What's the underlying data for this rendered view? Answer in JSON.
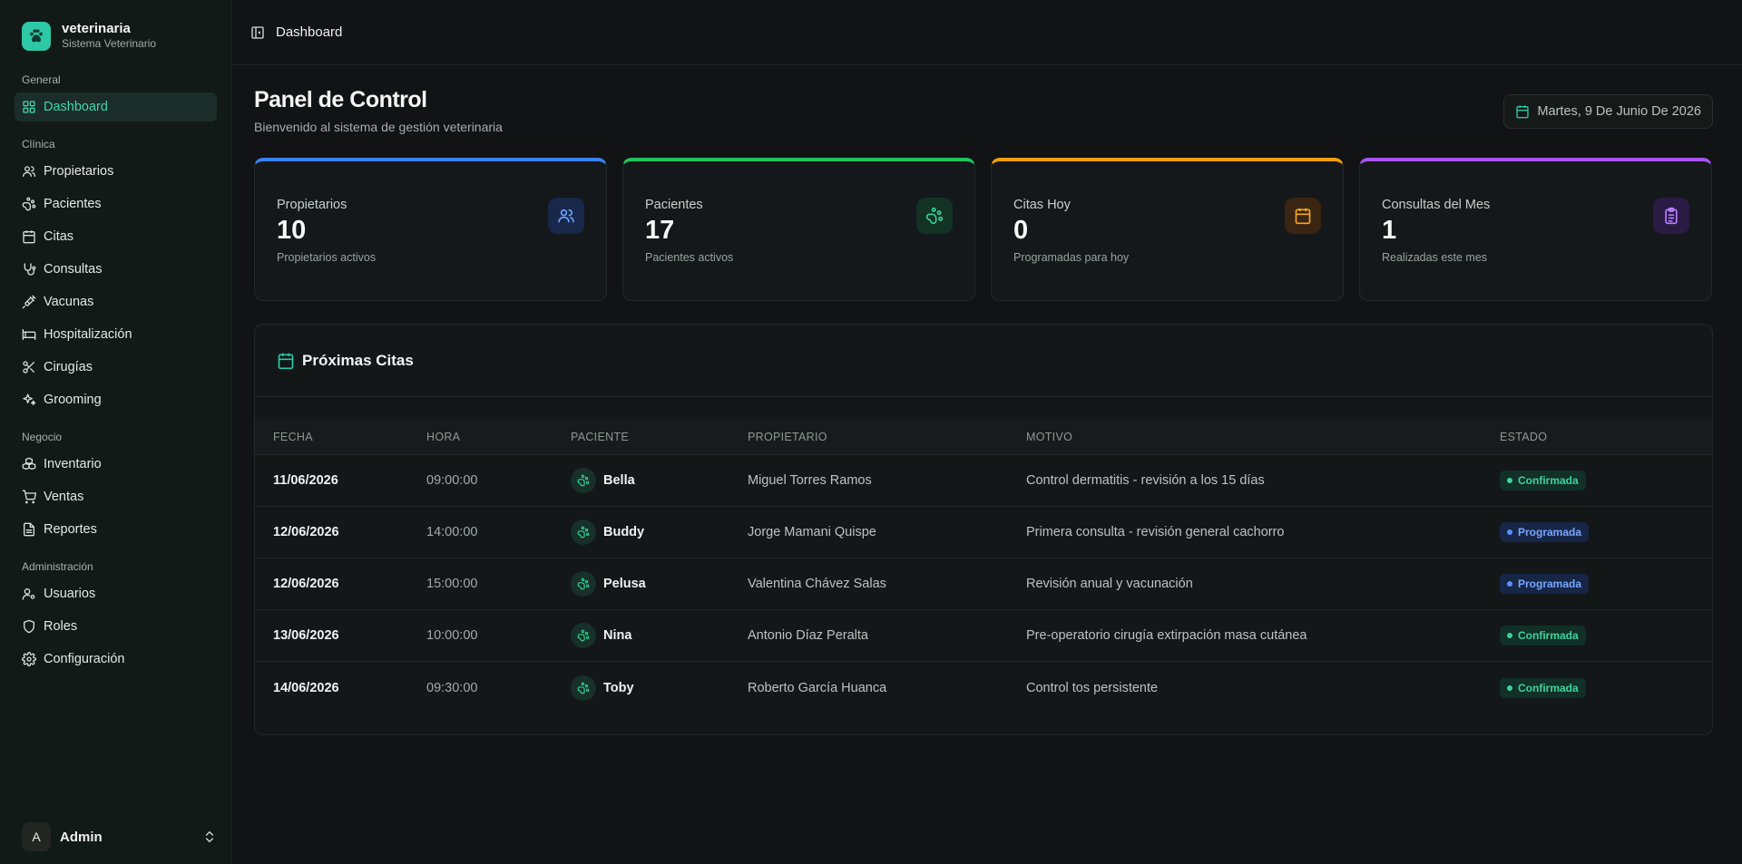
{
  "brand": {
    "title": "veterinaria",
    "subtitle": "Sistema Veterinario"
  },
  "sidebar": {
    "groups": [
      {
        "label": "General",
        "items": [
          {
            "label": "Dashboard",
            "icon": "grid-icon",
            "active": true
          }
        ]
      },
      {
        "label": "Clínica",
        "items": [
          {
            "label": "Propietarios",
            "icon": "users-icon"
          },
          {
            "label": "Pacientes",
            "icon": "paw-icon"
          },
          {
            "label": "Citas",
            "icon": "calendar-icon"
          },
          {
            "label": "Consultas",
            "icon": "stethoscope-icon"
          },
          {
            "label": "Vacunas",
            "icon": "syringe-icon"
          },
          {
            "label": "Hospitalización",
            "icon": "bed-icon"
          },
          {
            "label": "Cirugías",
            "icon": "scissors-icon"
          },
          {
            "label": "Grooming",
            "icon": "sparkles-icon"
          }
        ]
      },
      {
        "label": "Negocio",
        "items": [
          {
            "label": "Inventario",
            "icon": "boxes-icon"
          },
          {
            "label": "Ventas",
            "icon": "cart-icon"
          },
          {
            "label": "Reportes",
            "icon": "file-icon"
          }
        ]
      },
      {
        "label": "Administración",
        "items": [
          {
            "label": "Usuarios",
            "icon": "user-cog-icon"
          },
          {
            "label": "Roles",
            "icon": "shield-icon"
          },
          {
            "label": "Configuración",
            "icon": "gear-icon"
          }
        ]
      }
    ],
    "user": {
      "initial": "A",
      "name": "Admin"
    }
  },
  "topbar": {
    "breadcrumb": "Dashboard"
  },
  "page": {
    "title": "Panel de Control",
    "subtitle": "Bienvenido al sistema de gestión veterinaria",
    "date": "Martes, 9 De Junio De 2026"
  },
  "stats": [
    {
      "label": "Propietarios",
      "value": "10",
      "desc": "Propietarios activos",
      "color": "#3b82f6",
      "icon": "users-icon"
    },
    {
      "label": "Pacientes",
      "value": "17",
      "desc": "Pacientes activos",
      "color": "#22c55e",
      "icon": "paw-icon"
    },
    {
      "label": "Citas Hoy",
      "value": "0",
      "desc": "Programadas para hoy",
      "color": "#f59e0b",
      "icon": "calendar-icon"
    },
    {
      "label": "Consultas del Mes",
      "value": "1",
      "desc": "Realizadas este mes",
      "color": "#a855f7",
      "icon": "clipboard-icon"
    }
  ],
  "appointments": {
    "title": "Próximas Citas",
    "columns": [
      "FECHA",
      "HORA",
      "PACIENTE",
      "PROPIETARIO",
      "MOTIVO",
      "ESTADO"
    ],
    "rows": [
      {
        "fecha": "11/06/2026",
        "hora": "09:00:00",
        "paciente": "Bella",
        "propietario": "Miguel Torres Ramos",
        "motivo": "Control dermatitis - revisión a los 15 días",
        "estado": "Confirmada"
      },
      {
        "fecha": "12/06/2026",
        "hora": "14:00:00",
        "paciente": "Buddy",
        "propietario": "Jorge Mamani Quispe",
        "motivo": "Primera consulta - revisión general cachorro",
        "estado": "Programada"
      },
      {
        "fecha": "12/06/2026",
        "hora": "15:00:00",
        "paciente": "Pelusa",
        "propietario": "Valentina Chávez Salas",
        "motivo": "Revisión anual y vacunación",
        "estado": "Programada"
      },
      {
        "fecha": "13/06/2026",
        "hora": "10:00:00",
        "paciente": "Nina",
        "propietario": "Antonio Díaz Peralta",
        "motivo": "Pre-operatorio cirugía extirpación masa cutánea",
        "estado": "Confirmada"
      },
      {
        "fecha": "14/06/2026",
        "hora": "09:30:00",
        "paciente": "Toby",
        "propietario": "Roberto García Huanca",
        "motivo": "Control tos persistente",
        "estado": "Confirmada"
      }
    ]
  },
  "colors": {
    "accent": "#2dc8a6",
    "confirmed": "#3fd39c",
    "scheduled": "#78a6ff"
  }
}
